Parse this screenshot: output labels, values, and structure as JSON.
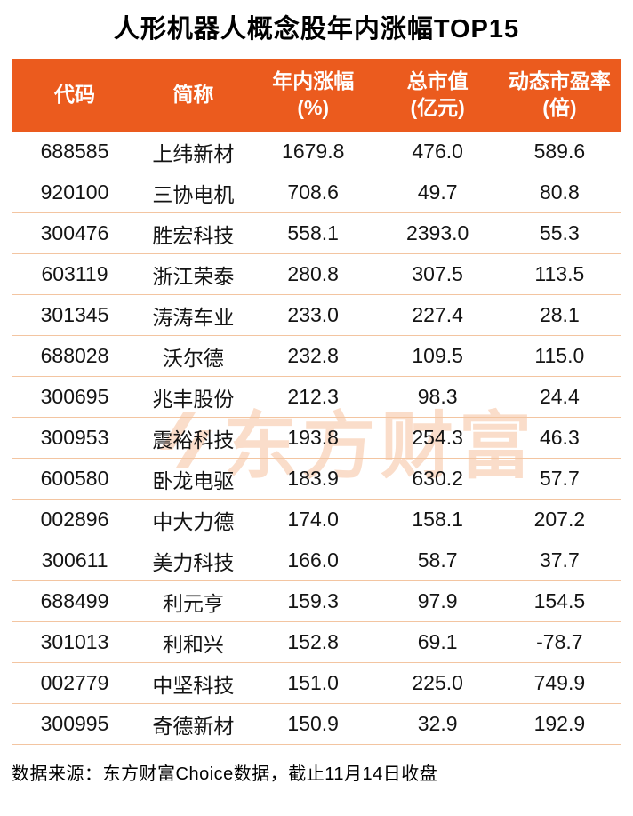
{
  "title": "人形机器人概念股年内涨幅TOP15",
  "header": {
    "cols": [
      {
        "line1": "代码",
        "line2": ""
      },
      {
        "line1": "简称",
        "line2": ""
      },
      {
        "line1": "年内涨幅",
        "line2": "(%)"
      },
      {
        "line1": "总市值",
        "line2": "(亿元)"
      },
      {
        "line1": "动态市盈率",
        "line2": "(倍)"
      }
    ]
  },
  "watermark": "东方财富",
  "source": "数据来源：东方财富Choice数据，截止11月14日收盘",
  "colors": {
    "header_bg": "#EB5B1E",
    "row_divider": "#F3C5A1",
    "watermark": "rgba(240,144,78,0.30)",
    "body_text": "#141414"
  },
  "chart_data": {
    "type": "table",
    "title": "人形机器人概念股年内涨幅TOP15",
    "columns": [
      "代码",
      "简称",
      "年内涨幅(%)",
      "总市值(亿元)",
      "动态市盈率(倍)"
    ],
    "rows": [
      [
        "688585",
        "上纬新材",
        "1679.8",
        "476.0",
        "589.6"
      ],
      [
        "920100",
        "三协电机",
        "708.6",
        "49.7",
        "80.8"
      ],
      [
        "300476",
        "胜宏科技",
        "558.1",
        "2393.0",
        "55.3"
      ],
      [
        "603119",
        "浙江荣泰",
        "280.8",
        "307.5",
        "113.5"
      ],
      [
        "301345",
        "涛涛车业",
        "233.0",
        "227.4",
        "28.1"
      ],
      [
        "688028",
        "沃尔德",
        "232.8",
        "109.5",
        "115.0"
      ],
      [
        "300695",
        "兆丰股份",
        "212.3",
        "98.3",
        "24.4"
      ],
      [
        "300953",
        "震裕科技",
        "193.8",
        "254.3",
        "46.3"
      ],
      [
        "600580",
        "卧龙电驱",
        "183.9",
        "630.2",
        "57.7"
      ],
      [
        "002896",
        "中大力德",
        "174.0",
        "158.1",
        "207.2"
      ],
      [
        "300611",
        "美力科技",
        "166.0",
        "58.7",
        "37.7"
      ],
      [
        "688499",
        "利元亨",
        "159.3",
        "97.9",
        "154.5"
      ],
      [
        "301013",
        "利和兴",
        "152.8",
        "69.1",
        "-78.7"
      ],
      [
        "002779",
        "中坚科技",
        "151.0",
        "225.0",
        "749.9"
      ],
      [
        "300995",
        "奇德新材",
        "150.9",
        "32.9",
        "192.9"
      ]
    ],
    "source_note": "数据来源：东方财富Choice数据，截止11月14日收盘",
    "layout": {
      "header_style": "orange band, white bold text",
      "align": "center",
      "grid": "horizontal dividers only"
    }
  }
}
